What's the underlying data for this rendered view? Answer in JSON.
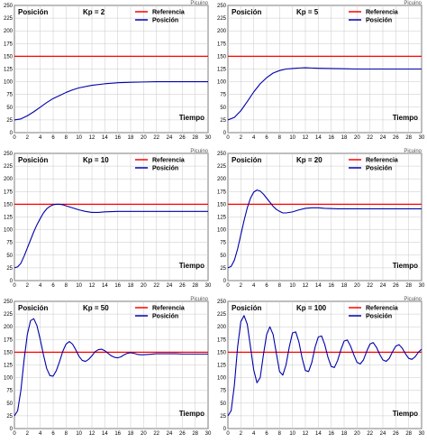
{
  "chart_data": [
    {
      "type": "line",
      "title": "Posición",
      "gain_label": "Kp = 2",
      "xlabel": "Tiempo",
      "watermark": "Picuino",
      "xlim": [
        0,
        30
      ],
      "ylim": [
        0,
        250
      ],
      "xticks": [
        "0",
        "2",
        "4",
        "6",
        "8",
        "10",
        "12",
        "14",
        "16",
        "18",
        "20",
        "22",
        "24",
        "26",
        "28",
        "30"
      ],
      "yticks": [
        "0",
        "25",
        "50",
        "75",
        "100",
        "125",
        "150",
        "175",
        "200",
        "225",
        "250"
      ],
      "grid": true,
      "legend_position": "top-right",
      "series": [
        {
          "name": "Referencia",
          "color": "#ff0000",
          "x": [
            0,
            30
          ],
          "y": [
            150,
            150
          ]
        },
        {
          "name": "Posición",
          "color": "#0000aa",
          "x": [
            0,
            1,
            2,
            3,
            4,
            5,
            6,
            7,
            8,
            9,
            10,
            12,
            14,
            16,
            18,
            20,
            22,
            24,
            26,
            28,
            30
          ],
          "y": [
            25,
            27,
            33,
            41,
            50,
            59,
            67,
            73,
            79,
            84,
            88,
            93,
            96,
            98,
            99,
            99.5,
            100,
            100,
            100,
            100,
            100
          ]
        }
      ]
    },
    {
      "type": "line",
      "title": "Posición",
      "gain_label": "Kp = 5",
      "xlabel": "Tiempo",
      "watermark": "Picuino",
      "xlim": [
        0,
        30
      ],
      "ylim": [
        0,
        250
      ],
      "xticks": [
        "0",
        "2",
        "4",
        "6",
        "8",
        "10",
        "12",
        "14",
        "16",
        "18",
        "20",
        "22",
        "24",
        "26",
        "28",
        "30"
      ],
      "yticks": [
        "0",
        "25",
        "50",
        "75",
        "100",
        "125",
        "150",
        "175",
        "200",
        "225",
        "250"
      ],
      "grid": true,
      "legend_position": "top-right",
      "series": [
        {
          "name": "Referencia",
          "color": "#ff0000",
          "x": [
            0,
            30
          ],
          "y": [
            150,
            150
          ]
        },
        {
          "name": "Posición",
          "color": "#0000aa",
          "x": [
            0,
            1,
            2,
            3,
            4,
            5,
            6,
            7,
            8,
            9,
            10,
            11,
            12,
            13,
            14,
            16,
            18,
            20,
            22,
            24,
            26,
            28,
            30
          ],
          "y": [
            25,
            30,
            43,
            61,
            80,
            96,
            108,
            117,
            122,
            125,
            126,
            127,
            127.5,
            127,
            126.5,
            126,
            125.5,
            125,
            125,
            125,
            125,
            125,
            125
          ]
        }
      ]
    },
    {
      "type": "line",
      "title": "Posición",
      "gain_label": "Kp = 10",
      "xlabel": "Tiempo",
      "watermark": "Picuino",
      "xlim": [
        0,
        30
      ],
      "ylim": [
        0,
        250
      ],
      "xticks": [
        "0",
        "2",
        "4",
        "6",
        "8",
        "10",
        "12",
        "14",
        "16",
        "18",
        "20",
        "22",
        "24",
        "26",
        "28",
        "30"
      ],
      "yticks": [
        "0",
        "25",
        "50",
        "75",
        "100",
        "125",
        "150",
        "175",
        "200",
        "225",
        "250"
      ],
      "grid": true,
      "legend_position": "top-right",
      "series": [
        {
          "name": "Referencia",
          "color": "#ff0000",
          "x": [
            0,
            30
          ],
          "y": [
            150,
            150
          ]
        },
        {
          "name": "Posición",
          "color": "#0000aa",
          "x": [
            0,
            0.5,
            1,
            1.5,
            2,
            2.5,
            3,
            3.5,
            4,
            4.5,
            5,
            5.5,
            6,
            6.5,
            7,
            7.5,
            8,
            8.5,
            9,
            10,
            11,
            12,
            13,
            14,
            15,
            16,
            18,
            20,
            22,
            24,
            26,
            28,
            30
          ],
          "y": [
            25,
            27,
            34,
            48,
            64,
            80,
            96,
            110,
            122,
            133,
            141,
            146,
            149,
            150,
            150,
            149,
            147,
            145,
            143,
            139,
            136,
            134,
            134,
            135,
            135.5,
            136,
            136,
            136,
            136,
            136,
            136,
            136,
            136
          ]
        }
      ]
    },
    {
      "type": "line",
      "title": "Posición",
      "gain_label": "Kp = 20",
      "xlabel": "Tiempo",
      "watermark": "Picuino",
      "xlim": [
        0,
        30
      ],
      "ylim": [
        0,
        250
      ],
      "xticks": [
        "0",
        "2",
        "4",
        "6",
        "8",
        "10",
        "12",
        "14",
        "16",
        "18",
        "20",
        "22",
        "24",
        "26",
        "28",
        "30"
      ],
      "yticks": [
        "0",
        "25",
        "50",
        "75",
        "100",
        "125",
        "150",
        "175",
        "200",
        "225",
        "250"
      ],
      "grid": true,
      "legend_position": "top-right",
      "series": [
        {
          "name": "Referencia",
          "color": "#ff0000",
          "x": [
            0,
            30
          ],
          "y": [
            150,
            150
          ]
        },
        {
          "name": "Posición",
          "color": "#0000aa",
          "x": [
            0,
            0.5,
            1,
            1.5,
            2,
            2.5,
            3,
            3.5,
            4,
            4.5,
            5,
            5.5,
            6,
            6.5,
            7,
            7.5,
            8,
            8.5,
            9,
            10,
            11,
            12,
            13,
            14,
            15,
            16,
            17,
            18,
            20,
            22,
            24,
            26,
            28,
            30
          ],
          "y": [
            25,
            28,
            40,
            62,
            90,
            118,
            143,
            162,
            174,
            178,
            176,
            170,
            162,
            154,
            146,
            140,
            136,
            133,
            133,
            135,
            139,
            142,
            143,
            143,
            142,
            141.5,
            141,
            141,
            141,
            141,
            141,
            141,
            141,
            141
          ]
        }
      ]
    },
    {
      "type": "line",
      "title": "Posición",
      "gain_label": "Kp = 50",
      "xlabel": "Tiempo",
      "watermark": "Picuino",
      "xlim": [
        0,
        30
      ],
      "ylim": [
        0,
        250
      ],
      "xticks": [
        "0",
        "2",
        "4",
        "6",
        "8",
        "10",
        "12",
        "14",
        "16",
        "18",
        "20",
        "22",
        "24",
        "26",
        "28",
        "30"
      ],
      "yticks": [
        "0",
        "25",
        "50",
        "75",
        "100",
        "125",
        "150",
        "175",
        "200",
        "225",
        "250"
      ],
      "grid": true,
      "legend_position": "top-right",
      "series": [
        {
          "name": "Referencia",
          "color": "#ff0000",
          "x": [
            0,
            30
          ],
          "y": [
            150,
            150
          ]
        },
        {
          "name": "Posición",
          "color": "#0000aa",
          "x": [
            0,
            0.5,
            1,
            1.5,
            2,
            2.5,
            3,
            3.5,
            4,
            4.5,
            5,
            5.5,
            6,
            6.5,
            7,
            7.5,
            8,
            8.5,
            9,
            9.5,
            10,
            10.5,
            11,
            11.5,
            12,
            12.5,
            13,
            13.5,
            14,
            14.5,
            15,
            15.5,
            16,
            16.5,
            17,
            17.5,
            18,
            18.5,
            19,
            19.5,
            20,
            21,
            22,
            23,
            24,
            25,
            26,
            27,
            28,
            29,
            30
          ],
          "y": [
            25,
            35,
            75,
            135,
            185,
            212,
            216,
            202,
            175,
            145,
            118,
            104,
            103,
            114,
            132,
            152,
            166,
            171,
            166,
            155,
            142,
            134,
            132,
            136,
            143,
            151,
            155,
            156,
            153,
            148,
            143,
            140,
            139,
            141,
            145,
            148,
            149,
            148,
            146,
            145,
            145,
            146,
            147,
            147,
            147,
            147,
            146.5,
            146.5,
            146.5,
            146.5,
            146.5
          ]
        }
      ]
    },
    {
      "type": "line",
      "title": "Posición",
      "gain_label": "Kp = 100",
      "xlabel": "Tiempo",
      "watermark": "Picuino",
      "xlim": [
        0,
        30
      ],
      "ylim": [
        0,
        250
      ],
      "xticks": [
        "0",
        "2",
        "4",
        "6",
        "8",
        "10",
        "12",
        "14",
        "16",
        "18",
        "20",
        "22",
        "24",
        "26",
        "28",
        "30"
      ],
      "yticks": [
        "0",
        "25",
        "50",
        "75",
        "100",
        "125",
        "150",
        "175",
        "200",
        "225",
        "250"
      ],
      "grid": true,
      "legend_position": "top-right",
      "series": [
        {
          "name": "Referencia",
          "color": "#ff0000",
          "x": [
            0,
            30
          ],
          "y": [
            150,
            150
          ]
        },
        {
          "name": "Posición",
          "color": "#0000aa",
          "x": [
            0,
            0.5,
            1,
            1.5,
            2,
            2.5,
            3,
            3.5,
            4,
            4.5,
            5,
            5.5,
            6,
            6.5,
            7,
            7.5,
            8,
            8.5,
            9,
            9.5,
            10,
            10.5,
            11,
            11.5,
            12,
            12.5,
            13,
            13.5,
            14,
            14.5,
            15,
            15.5,
            16,
            16.5,
            17,
            17.5,
            18,
            18.5,
            19,
            19.5,
            20,
            20.5,
            21,
            21.5,
            22,
            22.5,
            23,
            23.5,
            24,
            24.5,
            25,
            25.5,
            26,
            26.5,
            27,
            27.5,
            28,
            28.5,
            29,
            29.5,
            30
          ],
          "y": [
            25,
            35,
            85,
            160,
            210,
            222,
            205,
            160,
            115,
            90,
            100,
            145,
            185,
            200,
            185,
            148,
            112,
            105,
            125,
            160,
            188,
            190,
            170,
            138,
            114,
            112,
            130,
            160,
            180,
            182,
            165,
            140,
            122,
            120,
            134,
            155,
            172,
            174,
            162,
            145,
            130,
            127,
            135,
            152,
            166,
            169,
            160,
            146,
            135,
            132,
            138,
            151,
            162,
            165,
            158,
            147,
            138,
            136,
            141,
            150,
            156
          ]
        }
      ]
    }
  ]
}
